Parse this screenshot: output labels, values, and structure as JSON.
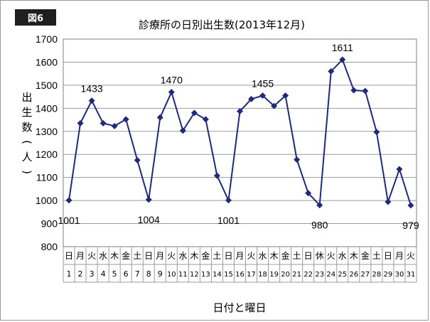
{
  "badge": "図6",
  "chart_data": {
    "type": "line",
    "title": "診療所の日別出生数(2013年12月)",
    "xlabel": "日付と曜日",
    "ylabel": "出生数(人)",
    "ylim": [
      800,
      1700
    ],
    "yticks": [
      800,
      900,
      1000,
      1100,
      1200,
      1300,
      1400,
      1500,
      1600,
      1700
    ],
    "grid": true,
    "legend": "none",
    "line_color": "#1f2a7a",
    "weekdays": [
      "日",
      "月",
      "火",
      "水",
      "木",
      "金",
      "土",
      "日",
      "月",
      "火",
      "水",
      "木",
      "金",
      "土",
      "日",
      "月",
      "火",
      "水",
      "木",
      "金",
      "土",
      "日",
      "休",
      "火",
      "水",
      "木",
      "金",
      "土",
      "日",
      "月",
      "火"
    ],
    "days": [
      "1",
      "2",
      "3",
      "4",
      "5",
      "6",
      "7",
      "8",
      "9",
      "10",
      "11",
      "12",
      "13",
      "14",
      "15",
      "16",
      "17",
      "18",
      "19",
      "20",
      "21",
      "22",
      "23",
      "24",
      "25",
      "26",
      "27",
      "28",
      "29",
      "30",
      "31"
    ],
    "series": [
      {
        "values": [
          1001,
          1335,
          1433,
          1335,
          1323,
          1352,
          1175,
          1004,
          1360,
          1470,
          1303,
          1380,
          1352,
          1108,
          1001,
          1387,
          1440,
          1455,
          1410,
          1455,
          1177,
          1032,
          980,
          1560,
          1611,
          1478,
          1475,
          1297,
          994,
          1136,
          979
        ]
      }
    ],
    "data_labels": [
      {
        "index": 0,
        "text": "1001",
        "pos": "below"
      },
      {
        "index": 2,
        "text": "1433",
        "pos": "above"
      },
      {
        "index": 7,
        "text": "1004",
        "pos": "below"
      },
      {
        "index": 9,
        "text": "1470",
        "pos": "above"
      },
      {
        "index": 14,
        "text": "1001",
        "pos": "below"
      },
      {
        "index": 17,
        "text": "1455",
        "pos": "above"
      },
      {
        "index": 22,
        "text": "980",
        "pos": "below"
      },
      {
        "index": 24,
        "text": "1611",
        "pos": "above"
      },
      {
        "index": 30,
        "text": "979",
        "pos": "below"
      }
    ]
  }
}
